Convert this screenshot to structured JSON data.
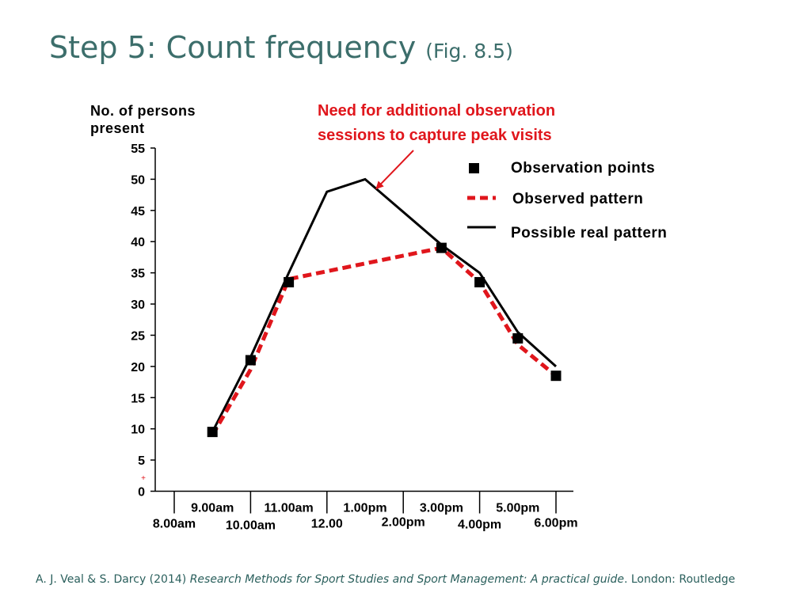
{
  "slide": {
    "title": "Step 5: Count frequency",
    "title_suffix": "(Fig. 8.5)",
    "citation_authors": "A. J. Veal & S. Darcy (2014) ",
    "citation_book": "Research Methods for Sport Studies and Sport Management: A practical guide",
    "citation_publisher": ". London: Routledge"
  },
  "chart_data": {
    "type": "line",
    "ylabel_lines": [
      "No. of persons",
      "present"
    ],
    "ylim": [
      0,
      55
    ],
    "yticks": [
      0,
      5,
      10,
      15,
      20,
      25,
      30,
      35,
      40,
      45,
      50,
      55
    ],
    "x_categories": [
      "8.00am",
      "9.00am",
      "10.00am",
      "11.00am",
      "12.00",
      "1.00pm",
      "2.00pm",
      "3.00pm",
      "4.00pm",
      "5.00pm",
      "6.00pm"
    ],
    "xtick_labels_upper": [
      "9.00am",
      "11.00am",
      "1.00pm",
      "3.00pm",
      "5.00pm"
    ],
    "xtick_labels_lower": [
      "8.00am",
      "10.00am",
      "12.00",
      "2.00pm",
      "4.00pm",
      "6.00pm"
    ],
    "series": [
      {
        "name": "Observation points",
        "style": "square-markers",
        "color": "#000000",
        "points": [
          {
            "x": "9.00am",
            "y": 9.5
          },
          {
            "x": "10.00am",
            "y": 21
          },
          {
            "x": "11.00am",
            "y": 33.5
          },
          {
            "x": "3.00pm",
            "y": 39
          },
          {
            "x": "4.00pm",
            "y": 33.5
          },
          {
            "x": "5.00pm",
            "y": 24.5
          },
          {
            "x": "6.00pm",
            "y": 18.5
          }
        ]
      },
      {
        "name": "Observed pattern",
        "style": "dashed",
        "color": "#e0161c",
        "points": [
          {
            "x": "9.00am",
            "y": 9
          },
          {
            "x": "10.00am",
            "y": 19.5
          },
          {
            "x": "11.00am",
            "y": 34
          },
          {
            "x": "3.00pm",
            "y": 39
          },
          {
            "x": "4.00pm",
            "y": 33.5
          },
          {
            "x": "5.00pm",
            "y": 23.5
          },
          {
            "x": "6.00pm",
            "y": 18.5
          }
        ]
      },
      {
        "name": "Possible real pattern",
        "style": "solid",
        "color": "#000000",
        "points": [
          {
            "x": "9.00am",
            "y": 9.5
          },
          {
            "x": "10.00am",
            "y": 21.5
          },
          {
            "x": "11.00am",
            "y": 35
          },
          {
            "x": "12.00",
            "y": 48
          },
          {
            "x": "1.00pm",
            "y": 50
          },
          {
            "x": "3.00pm",
            "y": 39.5
          },
          {
            "x": "4.00pm",
            "y": 35
          },
          {
            "x": "5.00pm",
            "y": 25.5
          },
          {
            "x": "6.00pm",
            "y": 20
          }
        ]
      }
    ],
    "legend": {
      "placement": "top-right",
      "entries": [
        "Observation points",
        "Observed pattern",
        "Possible real pattern"
      ]
    },
    "annotation": {
      "lines": [
        "Need for additional observation",
        "sessions to capture peak visits"
      ],
      "points_to": {
        "x": "1.00pm",
        "y": 50
      },
      "color": "#e0161c"
    },
    "grid": false
  }
}
